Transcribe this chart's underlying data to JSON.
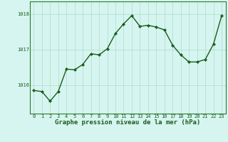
{
  "x": [
    0,
    1,
    2,
    3,
    4,
    5,
    6,
    7,
    8,
    9,
    10,
    11,
    12,
    13,
    14,
    15,
    16,
    17,
    18,
    19,
    20,
    21,
    22,
    23
  ],
  "y": [
    1015.85,
    1015.82,
    1015.55,
    1015.82,
    1016.45,
    1016.43,
    1016.58,
    1016.88,
    1016.85,
    1017.02,
    1017.45,
    1017.72,
    1017.95,
    1017.65,
    1017.68,
    1017.63,
    1017.55,
    1017.12,
    1016.85,
    1016.65,
    1016.65,
    1016.72,
    1017.15,
    1017.95
  ],
  "line_color": "#1a5c1a",
  "marker": "D",
  "marker_size": 2.2,
  "bg_color": "#d6f5f0",
  "grid_color": "#aaddcc",
  "xlabel": "Graphe pression niveau de la mer (hPa)",
  "xlabel_fontsize": 6.5,
  "xlabel_color": "#1a5c1a",
  "xlabel_bold": true,
  "yticks": [
    1016,
    1017,
    1018
  ],
  "ylim": [
    1015.2,
    1018.35
  ],
  "xlim": [
    -0.5,
    23.5
  ],
  "xticks": [
    0,
    1,
    2,
    3,
    4,
    5,
    6,
    7,
    8,
    9,
    10,
    11,
    12,
    13,
    14,
    15,
    16,
    17,
    18,
    19,
    20,
    21,
    22,
    23
  ],
  "tick_fontsize": 5.0,
  "tick_color": "#1a5c1a",
  "spine_color": "#2d7a2d",
  "linewidth": 1.0
}
